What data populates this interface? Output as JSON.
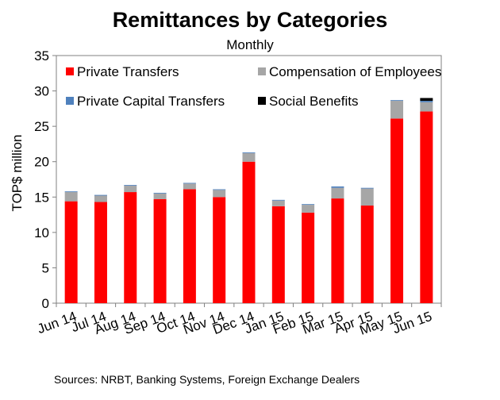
{
  "chart_data": {
    "type": "bar",
    "stacked": true,
    "title": "Remittances by Categories",
    "subtitle": "Monthly",
    "ylabel": "TOP$ million",
    "xlabel": "",
    "ylim": [
      0,
      35
    ],
    "yticks": [
      0,
      5,
      10,
      15,
      20,
      25,
      30,
      35
    ],
    "grid": false,
    "legend": "top (inside plot)",
    "categories": [
      "Jun 14",
      "Jul 14",
      "Aug 14",
      "Sep 14",
      "Oct 14",
      "Nov 14",
      "Dec 14",
      "Jan 15",
      "Feb 15",
      "Mar 15",
      "Apr 15",
      "May 15",
      "Jun 15"
    ],
    "series": [
      {
        "name": "Private Transfers",
        "color": "#ff0000",
        "values": [
          14.4,
          14.3,
          15.7,
          14.7,
          16.1,
          15.0,
          20.0,
          13.7,
          12.8,
          14.8,
          13.8,
          26.1,
          27.1
        ]
      },
      {
        "name": "Compensation of Employees",
        "color": "#a6a6a6",
        "values": [
          1.3,
          0.9,
          0.9,
          0.8,
          0.8,
          1.0,
          1.2,
          0.8,
          1.1,
          1.5,
          2.4,
          2.5,
          1.3
        ]
      },
      {
        "name": "Private Capital Transfers",
        "color": "#4f81bd",
        "values": [
          0.1,
          0.1,
          0.1,
          0.1,
          0.1,
          0.1,
          0.1,
          0.1,
          0.1,
          0.2,
          0.1,
          0.1,
          0.2
        ]
      },
      {
        "name": "Social Benefits",
        "color": "#000000",
        "values": [
          0.0,
          0.0,
          0.0,
          0.0,
          0.0,
          0.0,
          0.0,
          0.0,
          0.0,
          0.0,
          0.0,
          0.0,
          0.4
        ]
      }
    ],
    "legend_order": [
      "Private Transfers",
      "Compensation of Employees",
      "Private Capital Transfers",
      "Social Benefits"
    ]
  },
  "source_note": "Sources: NRBT, Banking Systems, Foreign Exchange Dealers"
}
